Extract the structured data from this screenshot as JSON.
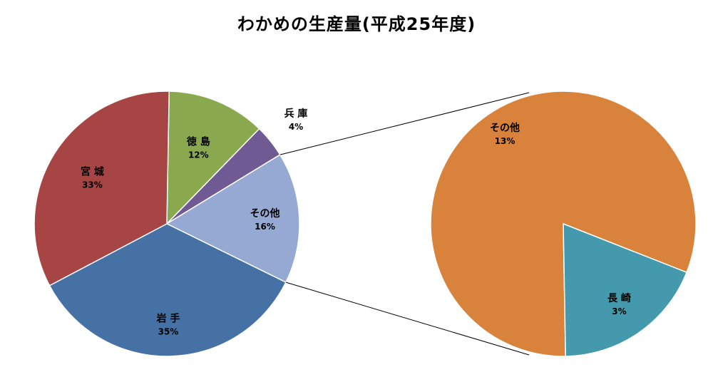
{
  "chart_data": {
    "type": "pie",
    "title": "わかめの生産量(平成25年度)",
    "main_pie": {
      "slices": [
        {
          "name": "徳 島",
          "value": 12,
          "label": "12%",
          "color": "#8aa84e"
        },
        {
          "name": "兵 庫",
          "value": 4,
          "label": "4%",
          "color": "#6f5a94"
        },
        {
          "name": "その他",
          "value": 16,
          "label": "16%",
          "color": "#95a9d2"
        },
        {
          "name": "岩 手",
          "value": 35,
          "label": "35%",
          "color": "#4571a5"
        },
        {
          "name": "宮 城",
          "value": 33,
          "label": "33%",
          "color": "#a64543"
        }
      ]
    },
    "breakout_pie": {
      "of_slice": "その他",
      "slices": [
        {
          "name": "その他",
          "value": 13,
          "label": "13%",
          "color": "#d9823b"
        },
        {
          "name": "長 崎",
          "value": 3,
          "label": "3%",
          "color": "#4499ad"
        }
      ]
    }
  }
}
